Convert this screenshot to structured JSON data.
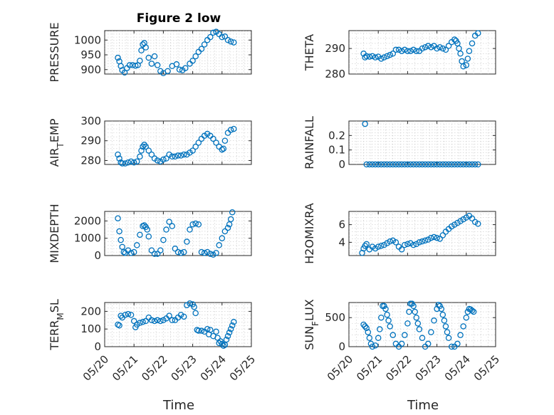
{
  "figure": {
    "title": "Figure 2 low",
    "xlabel": "Time"
  },
  "chart_data": [
    {
      "type": "scatter",
      "title": "Figure 2 low",
      "ylabel": "PRESSURE",
      "ylim": [
        885,
        1032
      ],
      "yticks": [
        900,
        950,
        1000
      ],
      "xlim": [
        "05/20",
        "05/25"
      ],
      "xticklabels": [
        "05/20",
        "05/21",
        "05/22",
        "05/23",
        "05/24",
        "05/25"
      ],
      "grid": true,
      "color": "#0072bd",
      "x": [
        20.45,
        20.5,
        20.55,
        20.6,
        20.68,
        20.76,
        20.85,
        20.95,
        21.05,
        21.13,
        21.2,
        21.25,
        21.3,
        21.35,
        21.4,
        21.5,
        21.6,
        21.7,
        21.8,
        21.9,
        22.0,
        22.15,
        22.3,
        22.45,
        22.55,
        22.65,
        22.75,
        22.9,
        23.0,
        23.1,
        23.2,
        23.3,
        23.4,
        23.5,
        23.6,
        23.7,
        23.8,
        23.9,
        24.0,
        24.1,
        24.2,
        24.3,
        24.4
      ],
      "y": [
        940,
        928,
        912,
        898,
        890,
        905,
        915,
        915,
        913,
        915,
        930,
        965,
        985,
        990,
        975,
        940,
        920,
        945,
        915,
        895,
        888,
        895,
        912,
        918,
        900,
        898,
        905,
        920,
        930,
        945,
        960,
        970,
        985,
        1000,
        1010,
        1025,
        1028,
        1020,
        1010,
        1012,
        1000,
        995,
        992
      ]
    },
    {
      "type": "scatter",
      "ylabel": "THETA",
      "ylim": [
        280,
        297
      ],
      "yticks": [
        280,
        290
      ],
      "xlim": [
        "05/20",
        "05/25"
      ],
      "xticklabels": [
        "05/20",
        "05/21",
        "05/22",
        "05/23",
        "05/24",
        "05/25"
      ],
      "grid": true,
      "color": "#0072bd",
      "x": [
        20.5,
        20.55,
        20.6,
        20.7,
        20.8,
        20.9,
        21.0,
        21.1,
        21.2,
        21.3,
        21.4,
        21.5,
        21.6,
        21.7,
        21.8,
        21.9,
        22.0,
        22.1,
        22.2,
        22.3,
        22.4,
        22.5,
        22.6,
        22.7,
        22.8,
        22.9,
        23.0,
        23.1,
        23.2,
        23.3,
        23.4,
        23.5,
        23.6,
        23.65,
        23.7,
        23.75,
        23.8,
        23.85,
        23.9,
        24.0,
        24.05,
        24.1,
        24.2,
        24.3,
        24.4
      ],
      "y": [
        288,
        286.5,
        287,
        286.8,
        287,
        286.5,
        286.8,
        286,
        286.5,
        287,
        287.5,
        288,
        289.5,
        289.5,
        289,
        289.5,
        289,
        289,
        289.5,
        289,
        289,
        290,
        290.5,
        291,
        290.5,
        291,
        290,
        290.5,
        290,
        289.5,
        291,
        292.5,
        293.5,
        293,
        292,
        290,
        288,
        285,
        283,
        283.5,
        286,
        289,
        292,
        295,
        296
      ]
    },
    {
      "type": "scatter",
      "ylabel": "AIR_TEMP",
      "ylim": [
        278,
        300
      ],
      "yticks": [
        280,
        290,
        300
      ],
      "xlim": [
        "05/20",
        "05/25"
      ],
      "xticklabels": [
        "05/20",
        "05/21",
        "05/22",
        "05/23",
        "05/24",
        "05/25"
      ],
      "grid": true,
      "color": "#0072bd",
      "x": [
        20.45,
        20.5,
        20.55,
        20.6,
        20.7,
        20.8,
        20.9,
        21.0,
        21.1,
        21.2,
        21.25,
        21.3,
        21.35,
        21.4,
        21.5,
        21.6,
        21.7,
        21.8,
        21.9,
        22.0,
        22.1,
        22.2,
        22.3,
        22.4,
        22.5,
        22.6,
        22.7,
        22.8,
        22.9,
        23.0,
        23.1,
        23.2,
        23.3,
        23.4,
        23.5,
        23.6,
        23.7,
        23.8,
        23.9,
        24.0,
        24.05,
        24.1,
        24.2,
        24.3,
        24.4
      ],
      "y": [
        283,
        281,
        279,
        278.5,
        278.5,
        279,
        279.5,
        279,
        279.5,
        282,
        285,
        287,
        288,
        287,
        285,
        283,
        281,
        280,
        279.5,
        280.5,
        281,
        283,
        282,
        282,
        282.5,
        282.5,
        283,
        283,
        284,
        285,
        287,
        289,
        291,
        292.5,
        293.5,
        292.5,
        291,
        289,
        287,
        285.5,
        286,
        290,
        294,
        295.5,
        296
      ]
    },
    {
      "type": "scatter",
      "ylabel": "RAINFALL",
      "ylim": [
        0,
        0.3
      ],
      "yticks": [
        0,
        0.1,
        0.2
      ],
      "xlim": [
        "05/20",
        "05/25"
      ],
      "xticklabels": [
        "05/20",
        "05/21",
        "05/22",
        "05/23",
        "05/24",
        "05/25"
      ],
      "grid": true,
      "color": "#0072bd",
      "x": [
        20.55,
        20.6,
        20.7,
        20.8,
        20.9,
        21.0,
        21.1,
        21.2,
        21.3,
        21.4,
        21.5,
        21.6,
        21.7,
        21.8,
        21.9,
        22.0,
        22.1,
        22.2,
        22.3,
        22.4,
        22.5,
        22.6,
        22.7,
        22.8,
        22.9,
        23.0,
        23.1,
        23.2,
        23.3,
        23.4,
        23.5,
        23.6,
        23.7,
        23.8,
        23.9,
        24.0,
        24.1,
        24.2,
        24.3,
        24.4
      ],
      "y": [
        0.28,
        0,
        0,
        0,
        0,
        0,
        0,
        0,
        0,
        0,
        0,
        0,
        0,
        0,
        0,
        0,
        0,
        0,
        0,
        0,
        0,
        0,
        0,
        0,
        0,
        0,
        0,
        0,
        0,
        0,
        0,
        0,
        0,
        0,
        0,
        0,
        0,
        0,
        0,
        0
      ]
    },
    {
      "type": "scatter",
      "ylabel": "MIXDEPTH",
      "ylim": [
        0,
        2550
      ],
      "yticks": [
        0,
        1000,
        2000
      ],
      "xlim": [
        "05/20",
        "05/25"
      ],
      "xticklabels": [
        "05/20",
        "05/21",
        "05/22",
        "05/23",
        "05/24",
        "05/25"
      ],
      "grid": true,
      "color": "#0072bd",
      "x": [
        20.45,
        20.5,
        20.55,
        20.6,
        20.65,
        20.7,
        20.8,
        20.9,
        21.0,
        21.1,
        21.2,
        21.3,
        21.35,
        21.4,
        21.45,
        21.5,
        21.6,
        21.7,
        21.8,
        21.9,
        22.0,
        22.1,
        22.2,
        22.3,
        22.4,
        22.5,
        22.6,
        22.7,
        22.8,
        22.9,
        23.0,
        23.1,
        23.2,
        23.3,
        23.4,
        23.5,
        23.6,
        23.7,
        23.8,
        23.9,
        24.0,
        24.1,
        24.2,
        24.25,
        24.3,
        24.35
      ],
      "y": [
        2150,
        1400,
        900,
        500,
        200,
        150,
        300,
        150,
        200,
        600,
        1200,
        1700,
        1750,
        1650,
        1500,
        1100,
        300,
        100,
        100,
        300,
        900,
        1500,
        1950,
        1700,
        400,
        200,
        150,
        200,
        800,
        1500,
        1800,
        1850,
        1800,
        200,
        150,
        200,
        100,
        50,
        150,
        600,
        1000,
        1400,
        1600,
        1800,
        2100,
        2500
      ]
    },
    {
      "type": "scatter",
      "ylabel": "H2OMIXRA",
      "ylim": [
        2.5,
        7.5
      ],
      "yticks": [
        4,
        6
      ],
      "xlim": [
        "05/20",
        "05/25"
      ],
      "xticklabels": [
        "05/20",
        "05/21",
        "05/22",
        "05/23",
        "05/24",
        "05/25"
      ],
      "grid": true,
      "color": "#0072bd",
      "x": [
        20.45,
        20.5,
        20.55,
        20.6,
        20.7,
        20.8,
        20.9,
        21.0,
        21.1,
        21.2,
        21.3,
        21.4,
        21.5,
        21.6,
        21.7,
        21.8,
        21.9,
        22.0,
        22.1,
        22.2,
        22.3,
        22.4,
        22.5,
        22.6,
        22.7,
        22.8,
        22.9,
        23.0,
        23.1,
        23.2,
        23.3,
        23.4,
        23.5,
        23.6,
        23.7,
        23.8,
        23.9,
        24.0,
        24.1,
        24.2,
        24.3,
        24.4
      ],
      "y": [
        2.8,
        3.3,
        3.6,
        3.8,
        3.2,
        3.5,
        3.3,
        3.5,
        3.6,
        3.7,
        3.9,
        4.1,
        4.2,
        4.0,
        3.5,
        3.2,
        3.7,
        3.8,
        3.9,
        3.7,
        3.8,
        4.0,
        4.1,
        4.2,
        4.3,
        4.5,
        4.6,
        4.5,
        4.4,
        4.8,
        5.2,
        5.5,
        5.8,
        6.0,
        6.2,
        6.4,
        6.6,
        6.8,
        7.0,
        6.7,
        6.3,
        6.1
      ]
    },
    {
      "type": "scatter",
      "ylabel": "TERR_MSL",
      "ylim": [
        0,
        250
      ],
      "yticks": [
        0,
        100,
        200
      ],
      "xlim": [
        "05/20",
        "05/25"
      ],
      "xticklabels": [
        "05/20",
        "05/21",
        "05/22",
        "05/23",
        "05/24",
        "05/25"
      ],
      "grid": true,
      "color": "#0072bd",
      "x": [
        20.45,
        20.5,
        20.55,
        20.6,
        20.7,
        20.8,
        20.9,
        21.0,
        21.05,
        21.1,
        21.2,
        21.3,
        21.4,
        21.5,
        21.6,
        21.7,
        21.8,
        21.9,
        22.0,
        22.1,
        22.2,
        22.3,
        22.4,
        22.5,
        22.6,
        22.7,
        22.8,
        22.9,
        23.0,
        23.05,
        23.1,
        23.15,
        23.2,
        23.3,
        23.4,
        23.5,
        23.55,
        23.6,
        23.7,
        23.8,
        23.85,
        23.9,
        23.95,
        24.0,
        24.05,
        24.1,
        24.15,
        24.2,
        24.25,
        24.3,
        24.35,
        24.4
      ],
      "y": [
        125,
        120,
        175,
        165,
        180,
        185,
        180,
        145,
        110,
        125,
        135,
        140,
        145,
        165,
        150,
        145,
        150,
        145,
        150,
        160,
        175,
        150,
        150,
        165,
        180,
        170,
        235,
        245,
        240,
        225,
        190,
        95,
        90,
        90,
        85,
        100,
        70,
        95,
        60,
        85,
        50,
        20,
        30,
        15,
        5,
        10,
        40,
        60,
        80,
        100,
        120,
        140
      ]
    },
    {
      "type": "scatter",
      "ylabel": "SUN_FLUX",
      "ylim": [
        0,
        760
      ],
      "yticks": [
        0,
        500
      ],
      "xlim": [
        "05/20",
        "05/25"
      ],
      "xticklabels": [
        "05/20",
        "05/21",
        "05/22",
        "05/23",
        "05/24",
        "05/25"
      ],
      "grid": true,
      "color": "#0072bd",
      "x": [
        20.5,
        20.55,
        20.6,
        20.65,
        20.7,
        20.75,
        20.8,
        20.9,
        21.0,
        21.05,
        21.1,
        21.15,
        21.2,
        21.25,
        21.3,
        21.35,
        21.4,
        21.5,
        21.6,
        21.7,
        21.8,
        21.9,
        22.0,
        22.05,
        22.1,
        22.15,
        22.2,
        22.25,
        22.3,
        22.35,
        22.4,
        22.5,
        22.6,
        22.7,
        22.8,
        22.9,
        23.0,
        23.05,
        23.1,
        23.15,
        23.2,
        23.25,
        23.3,
        23.35,
        23.4,
        23.5,
        23.6,
        23.7,
        23.8,
        23.9,
        24.0,
        24.05,
        24.1,
        24.15,
        24.2,
        24.25
      ],
      "y": [
        380,
        350,
        320,
        250,
        150,
        50,
        0,
        20,
        150,
        300,
        500,
        700,
        700,
        650,
        550,
        450,
        350,
        200,
        50,
        0,
        50,
        200,
        400,
        600,
        740,
        740,
        700,
        600,
        500,
        400,
        300,
        150,
        0,
        50,
        250,
        450,
        650,
        720,
        700,
        650,
        550,
        450,
        350,
        250,
        150,
        0,
        0,
        50,
        200,
        350,
        500,
        600,
        650,
        640,
        620,
        600
      ]
    }
  ]
}
